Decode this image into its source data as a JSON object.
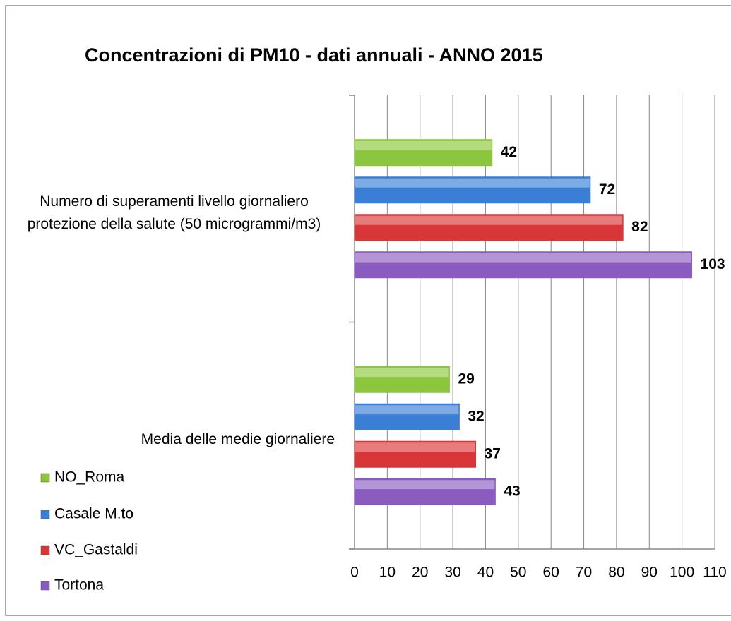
{
  "chart_data": {
    "type": "hbar",
    "title": "Concentrazioni di PM10 - dati annuali - ANNO 2015",
    "categories": [
      "Numero di superamenti livello giornaliero protezione della salute (50 microgrammi/m3)",
      "Media delle medie giornaliere"
    ],
    "series": [
      {
        "name": "NO_Roma",
        "color": "#8cc63f",
        "values": [
          42,
          29
        ]
      },
      {
        "name": "Casale M.to",
        "color": "#3a7fd5",
        "values": [
          72,
          32
        ]
      },
      {
        "name": "VC_Gastaldi",
        "color": "#d9363a",
        "values": [
          82,
          37
        ]
      },
      {
        "name": "Tortona",
        "color": "#8a5cc0",
        "values": [
          103,
          43
        ]
      }
    ],
    "xlim": [
      0,
      110
    ],
    "xticks": [
      0,
      10,
      20,
      30,
      40,
      50,
      60,
      70,
      80,
      90,
      100,
      110
    ],
    "grid": true,
    "legend": "bottom-left"
  }
}
